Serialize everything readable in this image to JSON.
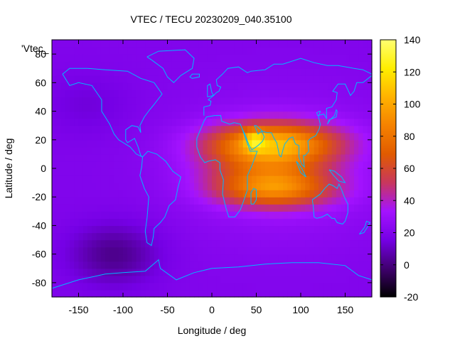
{
  "chart_data": {
    "type": "heatmap",
    "title": "VTEC / TECU 20230209_040.35100",
    "xlabel": "Longitude / deg",
    "ylabel": "Latitude / deg",
    "legend_key": "'Vtec_",
    "xlim": [
      -180,
      180
    ],
    "ylim": [
      -90,
      90
    ],
    "x_ticks": [
      -150,
      -100,
      -50,
      0,
      50,
      100,
      150
    ],
    "y_ticks": [
      -80,
      -60,
      -40,
      -20,
      0,
      20,
      40,
      60,
      80
    ],
    "colorbar": {
      "range": [
        -20,
        140
      ],
      "ticks": [
        -20,
        0,
        20,
        40,
        60,
        80,
        100,
        120,
        140
      ],
      "colormap": [
        "#000000",
        "#40006f",
        "#7500e5",
        "#a413ff",
        "#c8375d",
        "#e15b00",
        "#f58200",
        "#ffb200",
        "#ffee00",
        "#ffff70"
      ]
    },
    "grid": false,
    "background_level": 20,
    "features": [
      {
        "name": "equatorial-anomaly-north",
        "lon": 70,
        "lat": 18,
        "sigma_lon": 50,
        "sigma_lat": 10,
        "amplitude": 68
      },
      {
        "name": "equatorial-anomaly-south",
        "lon": 70,
        "lat": -14,
        "sigma_lon": 45,
        "sigma_lat": 9,
        "amplitude": 55
      },
      {
        "name": "equatorial-core",
        "lon": 60,
        "lat": 3,
        "sigma_lon": 50,
        "sigma_lat": 12,
        "amplitude": 25
      },
      {
        "name": "peak-arabia",
        "lon": 48,
        "lat": 20,
        "sigma_lon": 8,
        "sigma_lat": 5,
        "amplitude": 30
      },
      {
        "name": "dayside-broad",
        "lon": 80,
        "lat": 0,
        "sigma_lon": 80,
        "sigma_lat": 35,
        "amplitude": 12
      },
      {
        "name": "low-south-pacific",
        "lon": -110,
        "lat": -60,
        "sigma_lon": 35,
        "sigma_lat": 15,
        "amplitude": -18
      },
      {
        "name": "low-north-pacific",
        "lon": -140,
        "lat": 45,
        "sigma_lon": 35,
        "sigma_lat": 15,
        "amplitude": -6
      }
    ]
  }
}
